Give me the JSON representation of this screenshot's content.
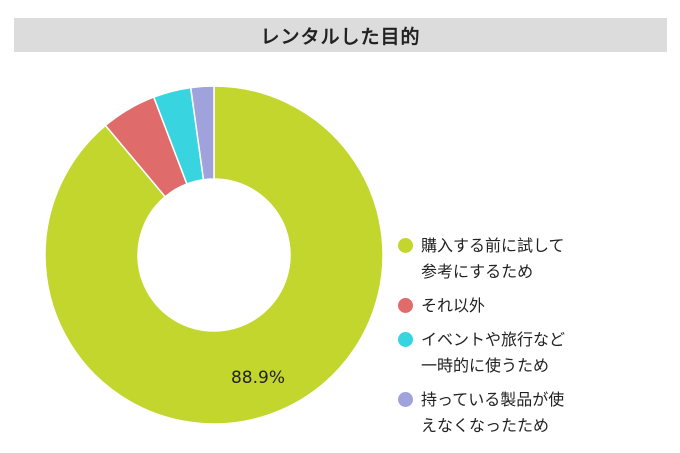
{
  "chart_data": {
    "type": "pie",
    "title": "レンタルした目的",
    "donut": true,
    "legend_position": "right",
    "categories": [
      "購入する前に試して\n参考にするため",
      "それ以外",
      "イベントや旅行など\n一時的に使うため",
      "持っている製品が使\nえなくなったため"
    ],
    "values": [
      88.9,
      5.3,
      3.6,
      2.2
    ],
    "colors": [
      "#c2d62e",
      "#e06b6b",
      "#38d5e0",
      "#a0a3db"
    ],
    "data_labels": [
      "88.9%",
      "",
      "",
      ""
    ]
  }
}
